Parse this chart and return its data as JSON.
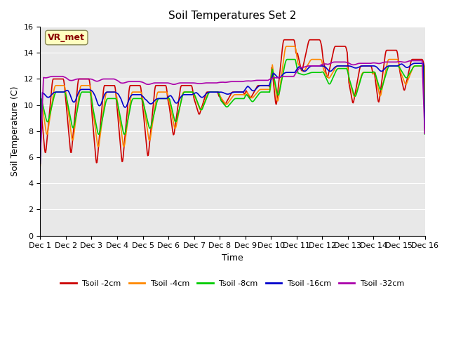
{
  "title": "Soil Temperatures Set 2",
  "xlabel": "Time",
  "ylabel": "Soil Temperature (C)",
  "ylim": [
    0,
    16
  ],
  "yticks": [
    0,
    2,
    4,
    6,
    8,
    10,
    12,
    14,
    16
  ],
  "bg_color": "#e8e8e8",
  "annotation_text": "VR_met",
  "annotation_color": "#8b0000",
  "annotation_bg": "#ffffc0",
  "line_colors": {
    "Tsoil -2cm": "#cc0000",
    "Tsoil -4cm": "#ff8800",
    "Tsoil -8cm": "#00cc00",
    "Tsoil -16cm": "#0000cc",
    "Tsoil -32cm": "#aa00aa"
  },
  "xtick_labels": [
    "Dec 1",
    "Dec 2",
    "Dec 3",
    "Dec 4",
    "Dec 5",
    "Dec 6",
    "Dec 7",
    "Dec 8",
    "Dec 9",
    "Dec 10",
    "Dec 11",
    "Dec 12",
    "Dec 13",
    "Dec 14",
    "Dec 15",
    "Dec 16"
  ],
  "num_points": 720
}
